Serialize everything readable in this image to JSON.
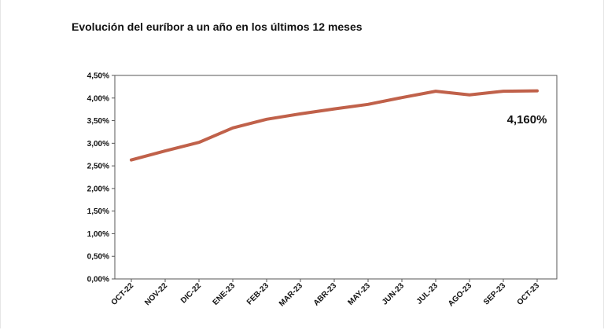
{
  "chart_title": "Evolución del euríbor a un año en los últimos 12 meses",
  "chart_data": {
    "type": "line",
    "title": "Evolución del euríbor a un año en los últimos 12 meses",
    "xlabel": "",
    "ylabel": "",
    "categories": [
      "OCT-22",
      "NOV-22",
      "DIC-22",
      "ENE-23",
      "FEB-23",
      "MAR-23",
      "ABR-23",
      "MAY-23",
      "JUN-23",
      "JUL-23",
      "AGO-23",
      "SEP-23",
      "OCT-23"
    ],
    "series": [
      {
        "values": [
          2.63,
          2.83,
          3.02,
          3.34,
          3.53,
          3.65,
          3.76,
          3.86,
          4.01,
          4.15,
          4.07,
          4.15,
          4.16
        ],
        "color": "#c0614a"
      }
    ],
    "ylim": [
      0,
      4.5
    ],
    "yticks": [
      "0,00%",
      "0,50%",
      "1,00%",
      "1,50%",
      "2,00%",
      "2,50%",
      "3,00%",
      "3,50%",
      "4,00%",
      "4,50%"
    ],
    "grid": false,
    "annotation": "4,160%"
  }
}
